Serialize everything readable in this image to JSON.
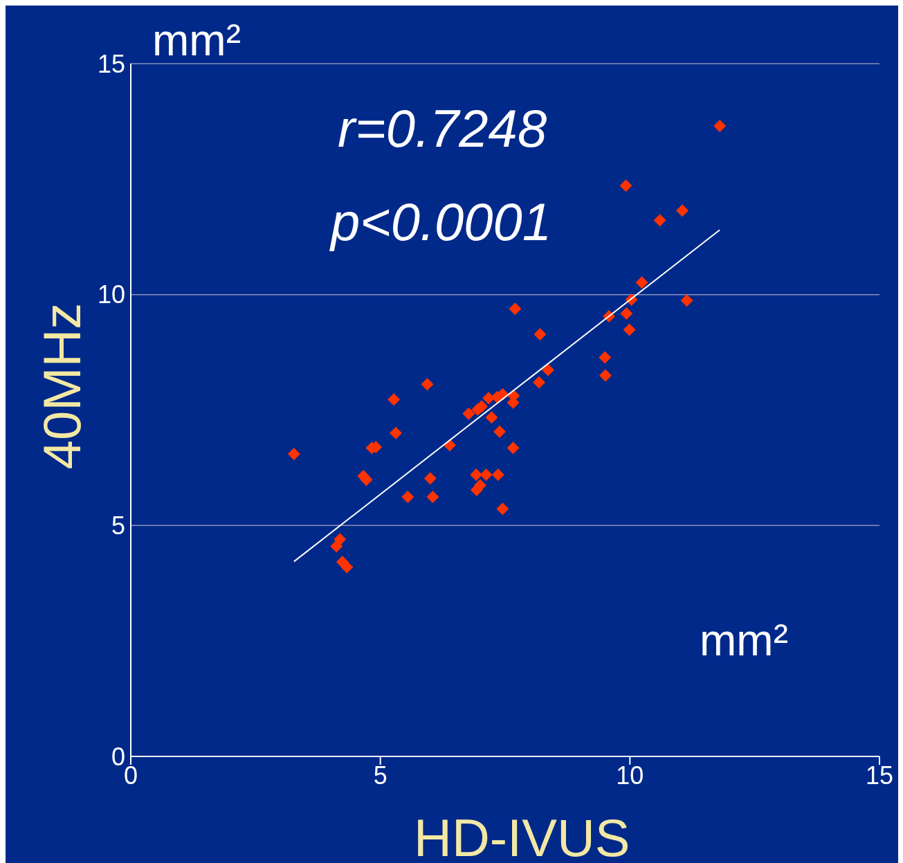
{
  "chart_data": {
    "type": "scatter",
    "xlabel": "HD-IVUS",
    "ylabel": "40MHz",
    "annotations": [
      "mm²",
      "r=0.7248",
      "p<0.0001",
      "mm²"
    ],
    "xlim": [
      0,
      15
    ],
    "xticks": [
      0,
      5,
      10,
      15
    ],
    "ylim": [
      0,
      15
    ],
    "yticks": [
      0,
      5,
      10,
      15
    ],
    "grid": "y",
    "marker": "diamond",
    "series": [
      {
        "type": "scatter",
        "color": "#ff3300",
        "x": [
          3.27,
          4.12,
          4.19,
          4.24,
          4.33,
          4.66,
          4.72,
          4.83,
          4.91,
          5.27,
          5.31,
          5.55,
          5.94,
          6.0,
          6.05,
          6.39,
          6.77,
          6.92,
          6.93,
          7.0,
          6.95,
          7.03,
          7.12,
          7.17,
          7.23,
          7.34,
          7.45,
          7.36,
          7.39,
          7.45,
          7.66,
          7.67,
          7.66,
          7.7,
          8.2,
          8.18,
          8.36,
          9.5,
          9.51,
          9.58,
          9.92,
          9.93,
          9.99,
          10.03,
          10.24,
          10.6,
          11.05,
          11.14,
          11.8
        ],
        "values": [
          6.55,
          4.55,
          4.7,
          4.21,
          4.1,
          6.07,
          5.99,
          6.68,
          6.7,
          7.73,
          7.0,
          5.62,
          8.06,
          6.02,
          5.62,
          6.74,
          7.42,
          6.1,
          5.77,
          5.87,
          7.51,
          7.58,
          6.1,
          7.76,
          7.34,
          7.78,
          7.84,
          6.1,
          7.03,
          5.36,
          7.66,
          7.81,
          6.68,
          9.69,
          9.14,
          8.1,
          8.37,
          8.64,
          8.25,
          9.53,
          12.36,
          9.59,
          9.24,
          9.89,
          10.26,
          11.61,
          11.82,
          9.87,
          13.65
        ]
      },
      {
        "type": "line",
        "color": "#ffffff",
        "x": [
          3.27,
          11.8
        ],
        "values": [
          4.22,
          11.4
        ],
        "marker": "none",
        "line_style": "solid"
      }
    ]
  }
}
